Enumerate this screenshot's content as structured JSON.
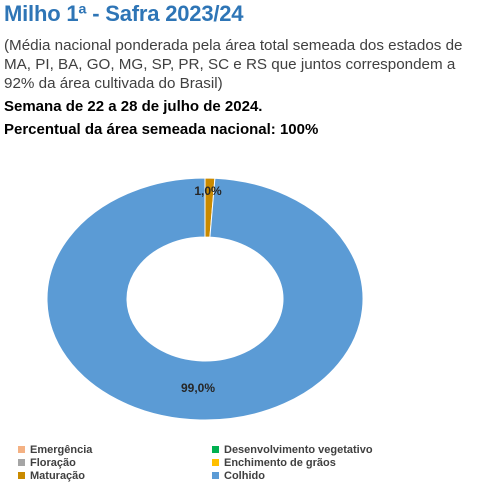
{
  "header": {
    "title": "Milho 1ª - Safra 2023/24",
    "subtitle": "(Média nacional ponderada pela área total semeada dos estados de MA, PI, BA, GO, MG, SP, PR, SC e RS que juntos correspondem a 92% da área cultivada do Brasil)",
    "week": "Semana de 22 a 28 de julho de 2024.",
    "sown_percent": "Percentual da área semeada nacional: 100%"
  },
  "chart_data": {
    "type": "pie",
    "variant": "donut",
    "categories": [
      "Emergência",
      "Desenvolvimento vegetativo",
      "Floração",
      "Enchimento de grãos",
      "Maturação",
      "Colhido"
    ],
    "values": [
      0,
      0,
      0,
      0,
      1.0,
      99.0
    ],
    "colors": [
      "#f4b183",
      "#00b050",
      "#a5a5a5",
      "#ffc000",
      "#c98a00",
      "#5b9bd5"
    ],
    "data_labels": [
      {
        "category": "Maturação",
        "text": "1,0%"
      },
      {
        "category": "Colhido",
        "text": "99,0%"
      }
    ],
    "legend_position": "bottom"
  }
}
